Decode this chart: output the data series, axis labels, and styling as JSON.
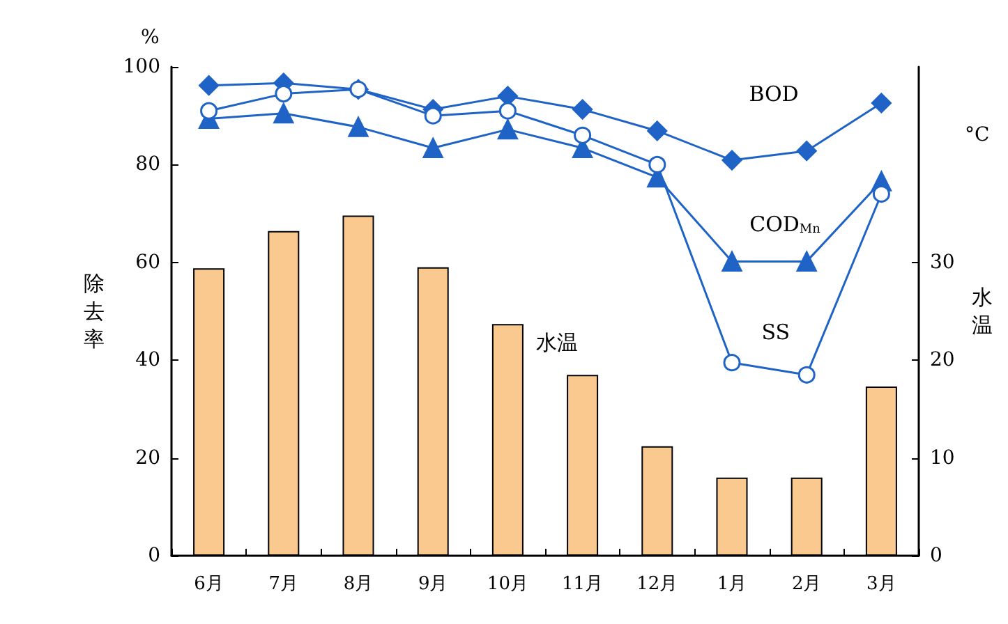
{
  "chart_data": {
    "type": "bar",
    "categories": [
      "6月",
      "7月",
      "8月",
      "9月",
      "10月",
      "11月",
      "12月",
      "1月",
      "2月",
      "3月"
    ],
    "ylabel": "除去率",
    "y2label": "水温",
    "annotations": [
      "%",
      "°C"
    ],
    "ylim": [
      0,
      100
    ],
    "yticks": [
      0,
      20,
      40,
      60,
      80,
      100
    ],
    "y2lim": [
      0,
      50
    ],
    "y2ticks": [
      0,
      10,
      20,
      30
    ],
    "grid": false,
    "legend": false,
    "series": [
      {
        "name": "水温",
        "axis": "y2",
        "color": "#fac98f",
        "values": [
          29.4,
          33.2,
          34.8,
          29.5,
          23.7,
          18.5,
          11.2,
          8.0,
          8.0,
          17.3
        ]
      },
      {
        "name": "BOD",
        "type": "line",
        "marker": "diamond",
        "color": "#1f63c6",
        "values": [
          96.2,
          96.7,
          95.4,
          91.3,
          94,
          91.3,
          86.9,
          80.9,
          82.8,
          92.6
        ]
      },
      {
        "name": "COD$_{Mn}$",
        "type": "line",
        "marker": "triangle",
        "color": "#1f63c6",
        "values": [
          89.4,
          90.5,
          87.7,
          83.4,
          87.2,
          83.4,
          77.4,
          60.2,
          60.2,
          76.6
        ]
      },
      {
        "name": "SS",
        "type": "line",
        "marker": "circle",
        "color": "#1f63c6",
        "values": [
          91,
          94.5,
          95.4,
          90,
          91,
          86,
          80,
          39.5,
          37,
          74
        ]
      }
    ]
  }
}
